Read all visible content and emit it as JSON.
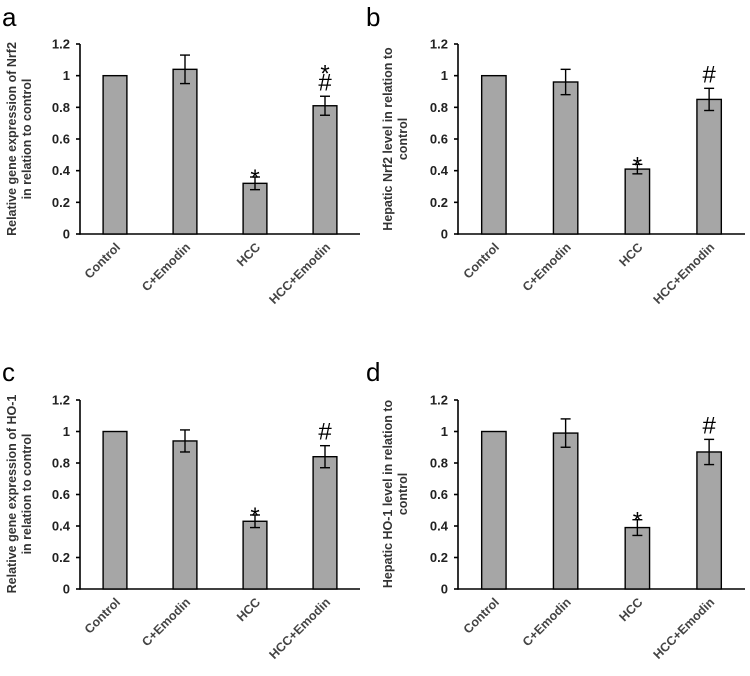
{
  "chart_data": [
    {
      "panel": "a",
      "type": "bar",
      "categories": [
        "Control",
        "C+Emodin",
        "HCC",
        "HCC+Emodin"
      ],
      "values": [
        1.0,
        1.04,
        0.32,
        0.81
      ],
      "errors": [
        0,
        0.09,
        0.04,
        0.06
      ],
      "annotations": [
        [],
        [],
        [
          "*"
        ],
        [
          "*",
          "#"
        ]
      ],
      "ylabel_lines": [
        "Relative gene expression of Nrf2",
        "in relation to control"
      ],
      "ylim": [
        0,
        1.2
      ],
      "yticks": [
        0,
        0.2,
        0.4,
        0.6,
        0.8,
        1,
        1.2
      ],
      "ytick_labels": [
        "0",
        "0.2",
        "0.4",
        "0.6",
        "0.8",
        "1",
        "1.2"
      ]
    },
    {
      "panel": "b",
      "type": "bar",
      "categories": [
        "Control",
        "C+Emodin",
        "HCC",
        "HCC+Emodin"
      ],
      "values": [
        1.0,
        0.96,
        0.41,
        0.85
      ],
      "errors": [
        0,
        0.08,
        0.03,
        0.07
      ],
      "annotations": [
        [],
        [],
        [
          "*"
        ],
        [
          "#"
        ]
      ],
      "ylabel_lines": [
        "Hepatic Nrf2 level in relation to",
        "control"
      ],
      "ylim": [
        0,
        1.2
      ],
      "yticks": [
        0,
        0.2,
        0.4,
        0.6,
        0.8,
        1,
        1.2
      ],
      "ytick_labels": [
        "0",
        "0.2",
        "0.4",
        "0.6",
        "0.8",
        "1",
        "1.2"
      ]
    },
    {
      "panel": "c",
      "type": "bar",
      "categories": [
        "Control",
        "C+Emodin",
        "HCC",
        "HCC+Emodin"
      ],
      "values": [
        1.0,
        0.94,
        0.43,
        0.84
      ],
      "errors": [
        0,
        0.07,
        0.04,
        0.07
      ],
      "annotations": [
        [],
        [],
        [
          "*"
        ],
        [
          "#"
        ]
      ],
      "ylabel_lines": [
        "Relative gene expression of HO-1",
        "in relation to control"
      ],
      "ylim": [
        0,
        1.2
      ],
      "yticks": [
        0,
        0.2,
        0.4,
        0.6,
        0.8,
        1,
        1.2
      ],
      "ytick_labels": [
        "0",
        "0.2",
        "0.4",
        "0.6",
        "0.8",
        "1",
        "1.2"
      ]
    },
    {
      "panel": "d",
      "type": "bar",
      "categories": [
        "Control",
        "C+Emodin",
        "HCC",
        "HCC+Emodin"
      ],
      "values": [
        1.0,
        0.99,
        0.39,
        0.87
      ],
      "errors": [
        0,
        0.09,
        0.05,
        0.08
      ],
      "annotations": [
        [],
        [],
        [
          "*"
        ],
        [
          "#"
        ]
      ],
      "ylabel_lines": [
        "Hepatic HO-1 level in relation to",
        "control"
      ],
      "ylim": [
        0,
        1.2
      ],
      "yticks": [
        0,
        0.2,
        0.4,
        0.6,
        0.8,
        1,
        1.2
      ],
      "ytick_labels": [
        "0",
        "0.2",
        "0.4",
        "0.6",
        "0.8",
        "1",
        "1.2"
      ]
    }
  ]
}
